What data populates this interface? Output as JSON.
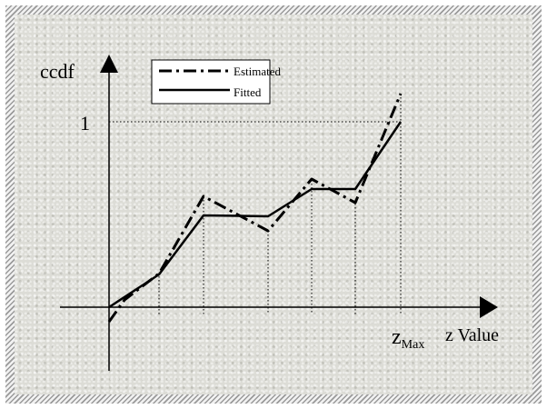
{
  "diagram": {
    "y_axis_label": "ccdf",
    "y_tick_label": "1",
    "x_axis_label": "z Value",
    "x_max_label_main": "z",
    "x_max_label_sub": "Max",
    "legend": {
      "estimated_label": "Estimated",
      "fitted_label": "Fitted"
    }
  }
}
